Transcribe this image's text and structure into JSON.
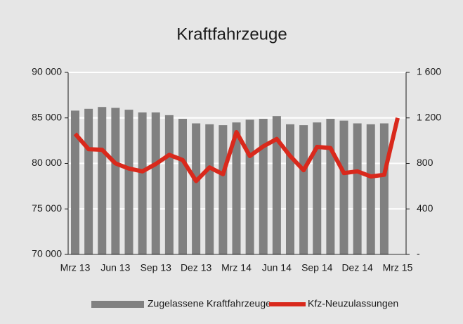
{
  "chart_data": {
    "type": "bar_line",
    "title": "Kraftfahrzeuge",
    "categories": [
      "Mrz 13",
      null,
      null,
      "Jun 13",
      null,
      null,
      "Sep 13",
      null,
      null,
      "Dez 13",
      null,
      null,
      "Mrz 14",
      null,
      null,
      "Jun 14",
      null,
      null,
      "Sep 14",
      null,
      null,
      "Dez 14",
      null,
      null,
      "Mrz 15"
    ],
    "series": [
      {
        "name": "Zugelassene Kraftfahrzeuge",
        "color": "#808080",
        "type": "bar",
        "values": [
          85800,
          86000,
          86200,
          86100,
          85900,
          85600,
          85600,
          85300,
          84900,
          84400,
          84300,
          84200,
          84500,
          84800,
          84900,
          85200,
          84300,
          84200,
          84500,
          84900,
          84700,
          84400,
          84300,
          84400,
          null
        ]
      },
      {
        "name": "Kfz-Neuzulassungen",
        "color": "#d9291c",
        "type": "line",
        "axis": "y2",
        "values": [
          1060,
          925,
          920,
          800,
          755,
          730,
          795,
          875,
          830,
          645,
          765,
          705,
          1075,
          865,
          950,
          1015,
          865,
          740,
          945,
          935,
          715,
          730,
          685,
          700,
          1200
        ]
      }
    ],
    "ylim": [
      70000,
      90000
    ],
    "yticks": [
      {
        "value": 70000,
        "label": "70 000"
      },
      {
        "value": 75000,
        "label": "75 000"
      },
      {
        "value": 80000,
        "label": "80 000"
      },
      {
        "value": 85000,
        "label": "85 000"
      },
      {
        "value": 90000,
        "label": "90 000"
      }
    ],
    "y2lim": [
      0,
      1600
    ],
    "y2ticks": [
      {
        "value": 0,
        "label": "-"
      },
      400,
      800,
      {
        "value": 1200,
        "label": "1 200"
      },
      {
        "value": 1600,
        "label": "1 600"
      }
    ],
    "grid": true,
    "legend": "bottom"
  }
}
